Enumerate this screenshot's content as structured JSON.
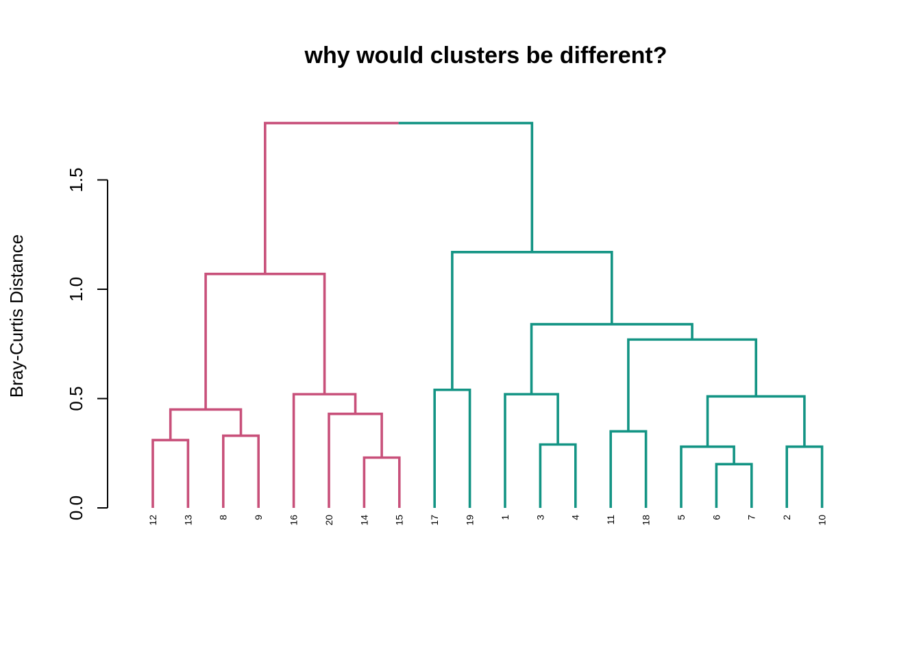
{
  "chart_data": {
    "type": "dendrogram",
    "title": "why would clusters be different?",
    "ylabel": "Bray-Curtis Distance",
    "xlabel": "",
    "ylim": [
      0,
      1.8
    ],
    "yticks": [
      0.0,
      0.5,
      1.0,
      1.5
    ],
    "ytick_labels": [
      "0.0",
      "0.5",
      "1.0",
      "1.5"
    ],
    "leaf_order": [
      "12",
      "13",
      "8",
      "9",
      "16",
      "20",
      "14",
      "15",
      "17",
      "19",
      "1",
      "3",
      "4",
      "11",
      "18",
      "5",
      "6",
      "7",
      "2",
      "10"
    ],
    "cluster_colors": {
      "left": "#c8507a",
      "right": "#139484"
    },
    "leaf_clusters": [
      "left",
      "left",
      "left",
      "left",
      "left",
      "left",
      "left",
      "left",
      "right",
      "right",
      "right",
      "right",
      "right",
      "right",
      "right",
      "right",
      "right",
      "right",
      "right",
      "right"
    ],
    "merges": [
      {
        "a": "L:12",
        "b": "L:13",
        "height": 0.31
      },
      {
        "a": "L:8",
        "b": "L:9",
        "height": 0.33
      },
      {
        "a": "M:0",
        "b": "M:1",
        "height": 0.45
      },
      {
        "a": "L:14",
        "b": "L:15",
        "height": 0.23
      },
      {
        "a": "L:20",
        "b": "M:3",
        "height": 0.43
      },
      {
        "a": "L:16",
        "b": "M:4",
        "height": 0.52
      },
      {
        "a": "M:2",
        "b": "M:5",
        "height": 1.07
      },
      {
        "a": "L:17",
        "b": "L:19",
        "height": 0.54
      },
      {
        "a": "L:3",
        "b": "L:4",
        "height": 0.29
      },
      {
        "a": "L:1",
        "b": "M:8",
        "height": 0.52
      },
      {
        "a": "L:11",
        "b": "L:18",
        "height": 0.35
      },
      {
        "a": "L:6",
        "b": "L:7",
        "height": 0.2
      },
      {
        "a": "L:5",
        "b": "M:11",
        "height": 0.28
      },
      {
        "a": "L:2",
        "b": "L:10",
        "height": 0.28
      },
      {
        "a": "M:12",
        "b": "M:13",
        "height": 0.51
      },
      {
        "a": "M:10",
        "b": "M:14",
        "height": 0.77
      },
      {
        "a": "M:9",
        "b": "M:15",
        "height": 0.84
      },
      {
        "a": "M:7",
        "b": "M:16",
        "height": 1.17
      },
      {
        "a": "M:6",
        "b": "M:17",
        "height": 1.76
      }
    ]
  }
}
